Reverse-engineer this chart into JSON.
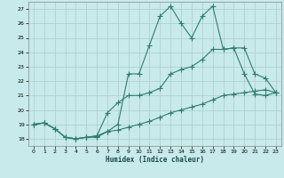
{
  "title": "",
  "xlabel": "Humidex (Indice chaleur)",
  "bg_color": "#c8eaea",
  "grid_color": "#b0d0d0",
  "line_color": "#2e7d6e",
  "xlim": [
    -0.5,
    23.5
  ],
  "ylim": [
    17.5,
    27.5
  ],
  "xticks": [
    0,
    1,
    2,
    3,
    4,
    5,
    6,
    7,
    8,
    9,
    10,
    11,
    12,
    13,
    14,
    15,
    16,
    17,
    18,
    19,
    20,
    21,
    22,
    23
  ],
  "yticks": [
    18,
    19,
    20,
    21,
    22,
    23,
    24,
    25,
    26,
    27
  ],
  "line1_x": [
    0,
    1,
    2,
    3,
    4,
    5,
    6,
    7,
    8,
    9,
    10,
    11,
    12,
    13,
    14,
    15,
    16,
    17,
    18,
    19,
    20,
    21,
    22,
    23
  ],
  "line1_y": [
    19.0,
    19.1,
    18.7,
    18.1,
    18.0,
    18.1,
    18.1,
    18.5,
    19.0,
    22.5,
    22.5,
    24.5,
    26.5,
    27.2,
    26.0,
    25.0,
    26.5,
    27.2,
    24.2,
    24.3,
    22.5,
    21.1,
    21.0,
    21.2
  ],
  "line2_x": [
    0,
    1,
    2,
    3,
    4,
    5,
    6,
    7,
    8,
    9,
    10,
    11,
    12,
    13,
    14,
    15,
    16,
    17,
    18,
    19,
    20,
    21,
    22,
    23
  ],
  "line2_y": [
    19.0,
    19.1,
    18.7,
    18.1,
    18.0,
    18.1,
    18.2,
    19.8,
    20.5,
    21.0,
    21.0,
    21.2,
    21.5,
    22.5,
    22.8,
    23.0,
    23.5,
    24.2,
    24.2,
    24.3,
    24.3,
    22.5,
    22.2,
    21.2
  ],
  "line3_x": [
    0,
    1,
    2,
    3,
    4,
    5,
    6,
    7,
    8,
    9,
    10,
    11,
    12,
    13,
    14,
    15,
    16,
    17,
    18,
    19,
    20,
    21,
    22,
    23
  ],
  "line3_y": [
    19.0,
    19.1,
    18.7,
    18.1,
    18.0,
    18.1,
    18.2,
    18.5,
    18.6,
    18.8,
    19.0,
    19.2,
    19.5,
    19.8,
    20.0,
    20.2,
    20.4,
    20.7,
    21.0,
    21.1,
    21.2,
    21.3,
    21.4,
    21.2
  ]
}
